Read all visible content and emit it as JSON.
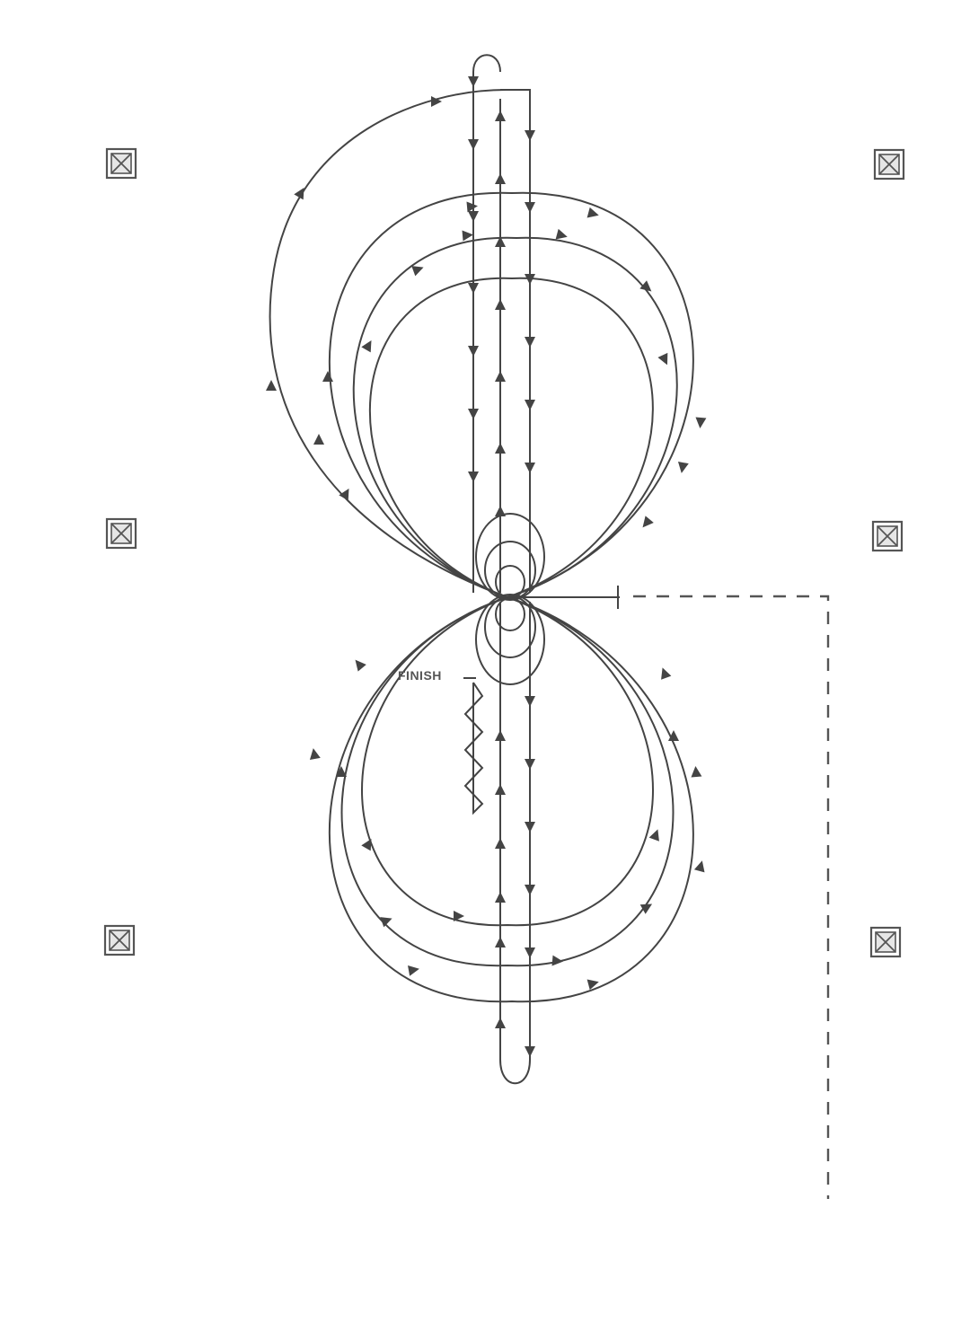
{
  "labels": {
    "finish": "FINISH"
  },
  "markers": [
    {
      "name": "marker-top-left"
    },
    {
      "name": "marker-top-right"
    },
    {
      "name": "marker-middle-left"
    },
    {
      "name": "marker-middle-right"
    },
    {
      "name": "marker-bottom-left"
    },
    {
      "name": "marker-bottom-right"
    }
  ],
  "colors": {
    "line": "#444444",
    "background": "#ffffff"
  }
}
